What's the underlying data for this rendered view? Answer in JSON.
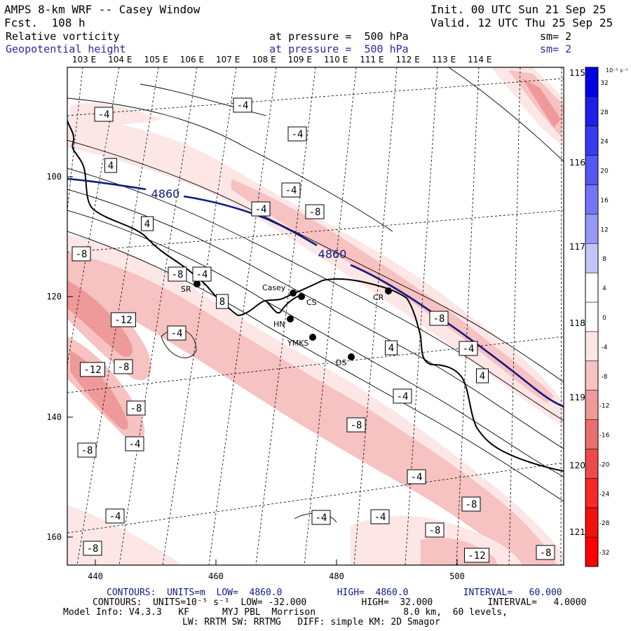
{
  "header": {
    "title": "AMPS 8-km WRF -- Casey Window",
    "fcst_label": "Fcst.",
    "fcst_value": "108 h",
    "init": "Init. 00 UTC Sun 21 Sep 25",
    "valid": "Valid. 12 UTC Thu 25 Sep 25",
    "field1": {
      "name": "Relative vorticity",
      "pressure": "at pressure =  500 hPa",
      "sm": "sm= 2"
    },
    "field2": {
      "name": "Geopotential height",
      "pressure": "at pressure =  500 hPa",
      "sm": "sm= 2"
    }
  },
  "colors": {
    "navy": "#0d1a8c",
    "height_line": "#101a80",
    "neg1": "#fde6e6",
    "neg2": "#f7c2c2",
    "neg3": "#ef9a9a",
    "neg4": "#e87070"
  },
  "map": {
    "top_lon_labels": [
      "103 E",
      "104 E",
      "105 E",
      "106 E",
      "107 E",
      "108 E",
      "109 E",
      "110 E",
      "111 E",
      "112 E",
      "113 E",
      "114 E"
    ],
    "right_lat_labels": [
      "115 E",
      "116 E",
      "117 E",
      "118 E",
      "119 E",
      "120 E",
      "121 E"
    ],
    "y_axis_labels": [
      "100",
      "120",
      "140",
      "160"
    ],
    "x_axis_labels": [
      "440",
      "460",
      "480",
      "500"
    ],
    "contour_labels": [
      "-4",
      "-4",
      "-4",
      "4",
      "-4",
      "-4",
      "-8",
      "4",
      "-8",
      "-8",
      "-4",
      "SR",
      "8",
      "-12",
      "-4",
      "-12",
      "-8",
      "-8",
      "-4",
      "-8",
      "4",
      "-8",
      "-4",
      "-8",
      "4",
      "-4",
      "-4",
      "-8",
      "-4",
      "-4",
      "-8",
      "-12",
      "-8",
      "-4",
      "-8"
    ],
    "height_labels": [
      "4860",
      "4860"
    ],
    "stations": [
      "Casey",
      "CS",
      "CR",
      "HN",
      "YMKS",
      "DS",
      "SR"
    ]
  },
  "colorbar": {
    "unit": "10⁻⁵ s⁻¹",
    "ticks": [
      "32",
      "28",
      "24",
      "20",
      "16",
      "12",
      "8",
      "4",
      "0",
      "-4",
      "-8",
      "-12",
      "-16",
      "-20",
      "-24",
      "-28",
      "-32"
    ],
    "fills": [
      "#0000e0",
      "#1e1ee8",
      "#3a3aee",
      "#5656f2",
      "#7474f5",
      "#9898f8",
      "#c4c4fb",
      "#ffffff",
      "#ffffff",
      "#fde6e6",
      "#f7c2c2",
      "#ef9a9a",
      "#e87070",
      "#ee4a4a",
      "#f22a2a",
      "#f51010",
      "#ff0000"
    ]
  },
  "footer": {
    "line1": "CONTOURS:  UNITS=m  LOW=  4860.0          HIGH=  4860.0          INTERVAL=   60.000",
    "line2": "CONTOURS:  UNITS=10⁻⁵ s⁻¹  LOW= -32.000          HIGH=  32.000          INTERVAL=   4.0000",
    "line3": "Model Info: V4.3.3   KF      MYJ PBL  Morrison                8.0 km,  60 levels,",
    "line4": "LW: RRTM SW: RRTMG   DIFF: simple KM: 2D Smagor"
  }
}
